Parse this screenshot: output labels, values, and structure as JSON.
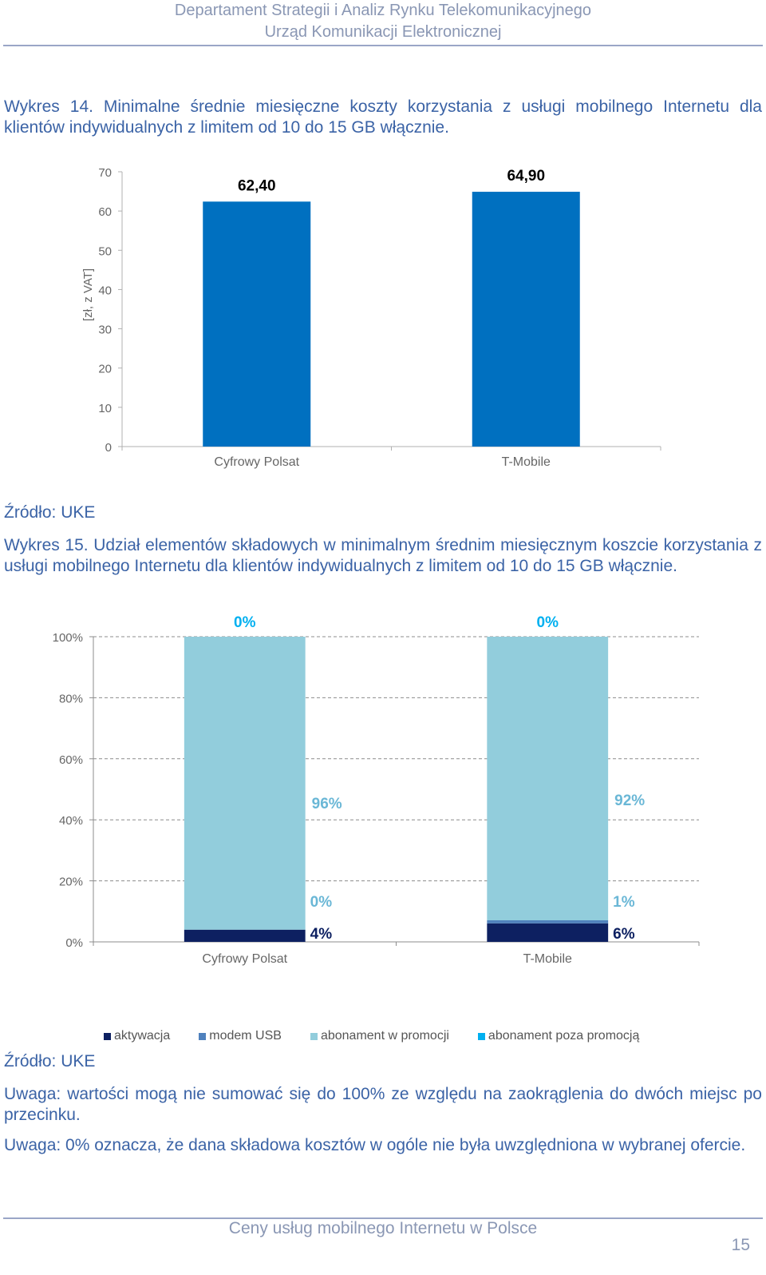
{
  "header": {
    "line1": "Departament Strategii i Analiz Rynku Telekomunikacyjnego",
    "line2": "Urząd Komunikacji Elektronicznej"
  },
  "caption1": "Wykres 14. Minimalne średnie miesięczne koszty korzystania z usługi mobilnego Internetu dla klientów indywidualnych z limitem od 10 do 15 GB włącznie.",
  "source1": "Źródło: UKE",
  "caption2": "Wykres 15. Udział elementów składowych w minimalnym średnim miesięcznym koszcie korzystania z usługi mobilnego Internetu dla klientów indywidualnych z limitem od 10 do 15 GB włącznie.",
  "source2": "Źródło: UKE",
  "note1": "Uwaga: wartości mogą nie sumować się do 100% ze względu na zaokrąglenia do dwóch miejsc po przecinku.",
  "note2": "Uwaga: 0% oznacza, że dana składowa kosztów w ogóle nie była uwzględniona w wybranej ofercie.",
  "footer": "Ceny usług mobilnego Internetu w Polsce",
  "page_number": "15",
  "colors": {
    "bar_blue": "#0070c0",
    "aktywacja": "#0d2061",
    "modem_usb": "#4f81bd",
    "abonament_w_promocji": "#92cddc",
    "abonament_poza_promocja": "#00b0f0",
    "label_light": "#6ab7d6",
    "label_bright": "#00b0f0"
  },
  "chart_data": [
    {
      "type": "bar",
      "categories": [
        "Cyfrowy Polsat",
        "T-Mobile"
      ],
      "values": [
        62.4,
        64.9
      ],
      "value_labels": [
        "62,40",
        "64,90"
      ],
      "ylabel": "[zł, z VAT]",
      "ylim": [
        0,
        70
      ],
      "yticks": [
        "0",
        "10",
        "20",
        "30",
        "40",
        "50",
        "60",
        "70"
      ],
      "grid": false
    },
    {
      "type": "bar",
      "stacked": true,
      "categories": [
        "Cyfrowy Polsat",
        "T-Mobile"
      ],
      "series": [
        {
          "name": "aktywacja",
          "values": [
            4,
            6
          ],
          "labels": [
            "4%",
            "6%"
          ]
        },
        {
          "name": "modem USB",
          "values": [
            0,
            1
          ],
          "labels": [
            "0%",
            "1%"
          ]
        },
        {
          "name": "abonament w promocji",
          "values": [
            96,
            92
          ],
          "labels": [
            "96%",
            "92%"
          ]
        },
        {
          "name": "abonament poza promocją",
          "values": [
            0,
            0
          ],
          "labels": [
            "0%",
            "0%"
          ]
        }
      ],
      "ylim": [
        0,
        100
      ],
      "yticks": [
        "0%",
        "20%",
        "40%",
        "60%",
        "80%",
        "100%"
      ],
      "grid": true,
      "legend_position": "bottom"
    }
  ]
}
